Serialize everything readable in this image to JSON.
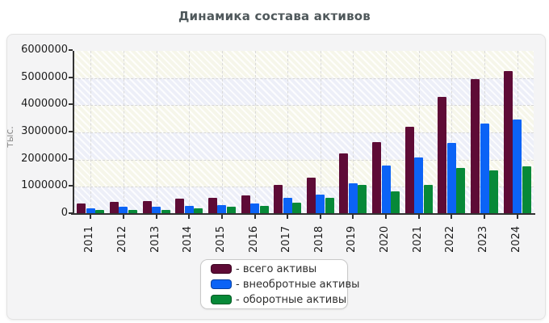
{
  "page": {
    "title": "Динамика состава активов"
  },
  "chart_data": {
    "type": "bar",
    "title": "Динамика состава активов",
    "xlabel": "",
    "ylabel": "тыс.",
    "ylim": [
      0,
      6000000
    ],
    "y_tick_step": 1000000,
    "grid": "dashed",
    "legend_position": "bottom-center",
    "categories": [
      "2011",
      "2012",
      "2013",
      "2014",
      "2015",
      "2016",
      "2017",
      "2018",
      "2019",
      "2020",
      "2021",
      "2022",
      "2023",
      "2024"
    ],
    "series": [
      {
        "name": "всего активы",
        "color": "#5e0b36",
        "values": [
          390000,
          460000,
          490000,
          550000,
          600000,
          680000,
          1060000,
          1330000,
          2230000,
          2640000,
          3200000,
          4320000,
          4950000,
          5270000
        ]
      },
      {
        "name": "внеобротные активы",
        "color": "#0b63f6",
        "values": [
          200000,
          280000,
          270000,
          300000,
          330000,
          380000,
          580000,
          700000,
          1130000,
          1790000,
          2070000,
          2620000,
          3330000,
          3490000
        ]
      },
      {
        "name": "оборотные активы",
        "color": "#078938",
        "values": [
          150000,
          140000,
          160000,
          210000,
          260000,
          300000,
          430000,
          580000,
          1080000,
          830000,
          1080000,
          1690000,
          1600000,
          1760000
        ]
      }
    ]
  },
  "legend": {
    "entries": [
      {
        "label": "- всего активы",
        "color": "#5e0b36"
      },
      {
        "label": "- внеобротные активы",
        "color": "#0b63f6"
      },
      {
        "label": "- оборотные активы",
        "color": "#078938"
      }
    ]
  },
  "colors": {
    "band_cream": "#f6f6ea",
    "band_blue": "#edeff8",
    "card_bg": "#f4f4f5",
    "axis": "#333333",
    "title_text": "#4f585b"
  }
}
